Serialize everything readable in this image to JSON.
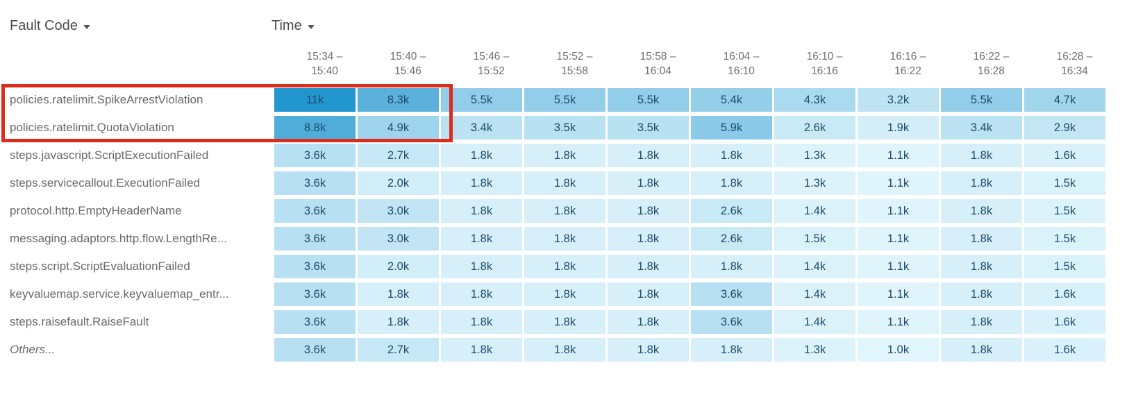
{
  "header": {
    "row_dimension_label": "Fault Code",
    "col_dimension_label": "Time"
  },
  "colors": {
    "cell_text": "#1d4a68",
    "row_label_text": "#696969",
    "dimension_header_text": "#4c4c4c",
    "column_header_text": "#6e6e6e",
    "highlight_box": "#dd2c1e"
  },
  "chart_data": {
    "type": "heatmap",
    "xlabel": "Time",
    "ylabel": "Fault Code",
    "legend_position": "none",
    "grid": false,
    "columns": [
      {
        "line1": "15:34 –",
        "line2": "15:40"
      },
      {
        "line1": "15:40 –",
        "line2": "15:46"
      },
      {
        "line1": "15:46 –",
        "line2": "15:52"
      },
      {
        "line1": "15:52 –",
        "line2": "15:58"
      },
      {
        "line1": "15:58 –",
        "line2": "16:04"
      },
      {
        "line1": "16:04 –",
        "line2": "16:10"
      },
      {
        "line1": "16:10 –",
        "line2": "16:16"
      },
      {
        "line1": "16:16 –",
        "line2": "16:22"
      },
      {
        "line1": "16:22 –",
        "line2": "16:28"
      },
      {
        "line1": "16:28 –",
        "line2": "16:34"
      }
    ],
    "rows": [
      {
        "label": "policies.ratelimit.SpikeArrestViolation",
        "italic": false,
        "display": [
          "11k",
          "8.3k",
          "5.5k",
          "5.5k",
          "5.5k",
          "5.4k",
          "4.3k",
          "3.2k",
          "5.5k",
          "4.7k"
        ],
        "values": [
          11000,
          8300,
          5500,
          5500,
          5500,
          5400,
          4300,
          3200,
          5500,
          4700
        ]
      },
      {
        "label": "policies.ratelimit.QuotaViolation",
        "italic": false,
        "display": [
          "8.8k",
          "4.9k",
          "3.4k",
          "3.5k",
          "3.5k",
          "5.9k",
          "2.6k",
          "1.9k",
          "3.4k",
          "2.9k"
        ],
        "values": [
          8800,
          4900,
          3400,
          3500,
          3500,
          5900,
          2600,
          1900,
          3400,
          2900
        ]
      },
      {
        "label": "steps.javascript.ScriptExecutionFailed",
        "italic": false,
        "display": [
          "3.6k",
          "2.7k",
          "1.8k",
          "1.8k",
          "1.8k",
          "1.8k",
          "1.3k",
          "1.1k",
          "1.8k",
          "1.6k"
        ],
        "values": [
          3600,
          2700,
          1800,
          1800,
          1800,
          1800,
          1300,
          1100,
          1800,
          1600
        ]
      },
      {
        "label": "steps.servicecallout.ExecutionFailed",
        "italic": false,
        "display": [
          "3.6k",
          "2.0k",
          "1.8k",
          "1.8k",
          "1.8k",
          "1.8k",
          "1.3k",
          "1.1k",
          "1.8k",
          "1.5k"
        ],
        "values": [
          3600,
          2000,
          1800,
          1800,
          1800,
          1800,
          1300,
          1100,
          1800,
          1500
        ]
      },
      {
        "label": "protocol.http.EmptyHeaderName",
        "italic": false,
        "display": [
          "3.6k",
          "3.0k",
          "1.8k",
          "1.8k",
          "1.8k",
          "2.6k",
          "1.4k",
          "1.1k",
          "1.8k",
          "1.5k"
        ],
        "values": [
          3600,
          3000,
          1800,
          1800,
          1800,
          2600,
          1400,
          1100,
          1800,
          1500
        ]
      },
      {
        "label": "messaging.adaptors.http.flow.LengthRe...",
        "italic": false,
        "display": [
          "3.6k",
          "3.0k",
          "1.8k",
          "1.8k",
          "1.8k",
          "2.6k",
          "1.5k",
          "1.1k",
          "1.8k",
          "1.5k"
        ],
        "values": [
          3600,
          3000,
          1800,
          1800,
          1800,
          2600,
          1500,
          1100,
          1800,
          1500
        ]
      },
      {
        "label": "steps.script.ScriptEvaluationFailed",
        "italic": false,
        "display": [
          "3.6k",
          "2.0k",
          "1.8k",
          "1.8k",
          "1.8k",
          "1.8k",
          "1.4k",
          "1.1k",
          "1.8k",
          "1.5k"
        ],
        "values": [
          3600,
          2000,
          1800,
          1800,
          1800,
          1800,
          1400,
          1100,
          1800,
          1500
        ]
      },
      {
        "label": "keyvaluemap.service.keyvaluemap_entr...",
        "italic": false,
        "display": [
          "3.6k",
          "1.8k",
          "1.8k",
          "1.8k",
          "1.8k",
          "3.6k",
          "1.4k",
          "1.1k",
          "1.8k",
          "1.6k"
        ],
        "values": [
          3600,
          1800,
          1800,
          1800,
          1800,
          3600,
          1400,
          1100,
          1800,
          1600
        ]
      },
      {
        "label": "steps.raisefault.RaiseFault",
        "italic": false,
        "display": [
          "3.6k",
          "1.8k",
          "1.8k",
          "1.8k",
          "1.8k",
          "3.6k",
          "1.4k",
          "1.1k",
          "1.8k",
          "1.6k"
        ],
        "values": [
          3600,
          1800,
          1800,
          1800,
          1800,
          3600,
          1400,
          1100,
          1800,
          1600
        ]
      },
      {
        "label": "Others...",
        "italic": true,
        "display": [
          "3.6k",
          "2.7k",
          "1.8k",
          "1.8k",
          "1.8k",
          "1.8k",
          "1.3k",
          "1.0k",
          "1.8k",
          "1.6k"
        ],
        "values": [
          3600,
          2700,
          1800,
          1800,
          1800,
          1800,
          1300,
          1000,
          1800,
          1600
        ]
      }
    ],
    "color_scale": {
      "min_value": 1000,
      "max_value": 11000,
      "min_color": "#e1f5fc",
      "max_color": "#2196cf",
      "gamma": 1.12
    },
    "highlight": {
      "color": "#dd2c1e",
      "highlighted_rows": [
        0,
        1
      ],
      "highlighted_columns": [
        0,
        1
      ]
    }
  }
}
